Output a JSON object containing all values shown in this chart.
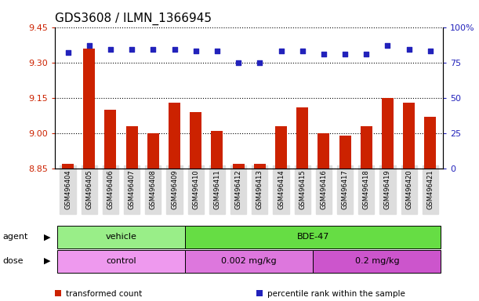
{
  "title": "GDS3608 / ILMN_1366945",
  "samples": [
    "GSM496404",
    "GSM496405",
    "GSM496406",
    "GSM496407",
    "GSM496408",
    "GSM496409",
    "GSM496410",
    "GSM496411",
    "GSM496412",
    "GSM496413",
    "GSM496414",
    "GSM496415",
    "GSM496416",
    "GSM496417",
    "GSM496418",
    "GSM496419",
    "GSM496420",
    "GSM496421"
  ],
  "transformed_count": [
    8.87,
    9.36,
    9.1,
    9.03,
    9.0,
    9.13,
    9.09,
    9.01,
    8.87,
    8.87,
    9.03,
    9.11,
    9.0,
    8.99,
    9.03,
    9.15,
    9.13,
    9.07
  ],
  "percentile_rank": [
    82,
    87,
    84,
    84,
    84,
    84,
    83,
    83,
    75,
    75,
    83,
    83,
    81,
    81,
    81,
    87,
    84,
    83
  ],
  "ylim_left": [
    8.85,
    9.45
  ],
  "ylim_right": [
    0,
    100
  ],
  "yticks_left": [
    8.85,
    9.0,
    9.15,
    9.3,
    9.45
  ],
  "yticks_right": [
    0,
    25,
    50,
    75,
    100
  ],
  "bar_color": "#cc2200",
  "dot_color": "#2222bb",
  "grid_color": "#333333",
  "agent_groups": [
    {
      "label": "vehicle",
      "start": 0,
      "end": 5,
      "color": "#99ee88"
    },
    {
      "label": "BDE-47",
      "start": 6,
      "end": 17,
      "color": "#66dd44"
    }
  ],
  "dose_groups": [
    {
      "label": "control",
      "start": 0,
      "end": 5,
      "color": "#ee99ee"
    },
    {
      "label": "0.002 mg/kg",
      "start": 6,
      "end": 11,
      "color": "#dd77dd"
    },
    {
      "label": "0.2 mg/kg",
      "start": 12,
      "end": 17,
      "color": "#cc55cc"
    }
  ],
  "legend_items": [
    {
      "label": "transformed count",
      "color": "#cc2200"
    },
    {
      "label": "percentile rank within the sample",
      "color": "#2222bb"
    }
  ],
  "title_fontsize": 11,
  "axis_color_left": "#cc2200",
  "axis_color_right": "#2222bb",
  "bar_bottom": 8.85,
  "xticklabel_bg": "#dddddd"
}
